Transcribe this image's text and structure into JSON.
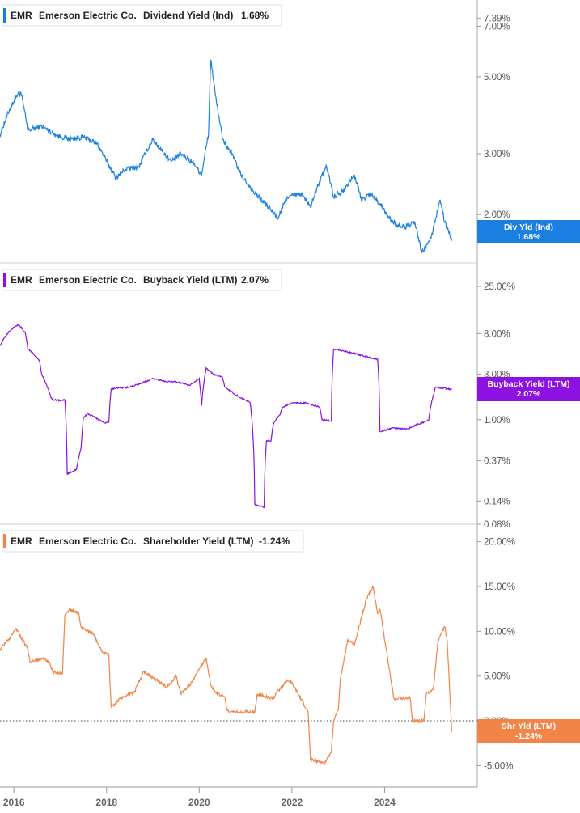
{
  "chart_data": [
    {
      "type": "line",
      "ticker": "EMR",
      "company": "Emerson Electric Co.",
      "metric": "Dividend Yield (Ind)",
      "current_label": "1.68%",
      "badge": {
        "line1": "Div Yld (Ind)",
        "line2": "1.68%"
      },
      "color": "#1a7fe0",
      "scale": "log",
      "ylim": [
        1.45,
        8.2
      ],
      "yticks": [
        {
          "label": "7.39%",
          "value": 7.39
        },
        {
          "label": "7.00%",
          "value": 7.0
        },
        {
          "label": "5.00%",
          "value": 5.0
        },
        {
          "label": "3.00%",
          "value": 3.0
        },
        {
          "label": "2.00%",
          "value": 2.0
        }
      ],
      "x": [
        2015.7,
        2015.9,
        2016.05,
        2016.15,
        2016.3,
        2016.6,
        2016.9,
        2017.2,
        2017.5,
        2017.8,
        2018.0,
        2018.2,
        2018.4,
        2018.7,
        2019.0,
        2019.2,
        2019.4,
        2019.6,
        2019.9,
        2020.05,
        2020.2,
        2020.25,
        2020.35,
        2020.5,
        2020.7,
        2020.9,
        2021.2,
        2021.5,
        2021.7,
        2021.9,
        2022.2,
        2022.4,
        2022.6,
        2022.75,
        2022.9,
        2023.1,
        2023.35,
        2023.5,
        2023.7,
        2023.9,
        2024.1,
        2024.3,
        2024.5,
        2024.65,
        2024.8,
        2025.0,
        2025.2,
        2025.3,
        2025.45
      ],
      "values": [
        3.4,
        4.0,
        4.4,
        4.5,
        3.5,
        3.6,
        3.4,
        3.3,
        3.35,
        3.2,
        2.85,
        2.55,
        2.7,
        2.75,
        3.3,
        3.05,
        2.85,
        3.0,
        2.8,
        2.6,
        3.4,
        5.6,
        4.4,
        3.3,
        3.0,
        2.6,
        2.3,
        2.1,
        1.95,
        2.25,
        2.3,
        2.1,
        2.5,
        2.75,
        2.25,
        2.35,
        2.6,
        2.2,
        2.3,
        2.15,
        1.95,
        1.85,
        1.85,
        1.9,
        1.55,
        1.7,
        2.2,
        1.9,
        1.68
      ]
    },
    {
      "type": "line",
      "ticker": "EMR",
      "company": "Emerson Electric Co.",
      "metric": "Buyback Yield (LTM)",
      "current_label": "2.07%",
      "badge": {
        "line1": "Buyback Yield (LTM)",
        "line2": "2.07%"
      },
      "color": "#8b12e0",
      "scale": "log",
      "ylim": [
        0.08,
        40
      ],
      "yticks": [
        {
          "label": "25.00%",
          "value": 25
        },
        {
          "label": "8.00%",
          "value": 8
        },
        {
          "label": "3.00%",
          "value": 3
        },
        {
          "label": "1.00%",
          "value": 1
        },
        {
          "label": "0.37%",
          "value": 0.37
        },
        {
          "label": "0.14%",
          "value": 0.14
        },
        {
          "label": "0.08%",
          "value": 0.08
        }
      ],
      "x": [
        2015.7,
        2015.9,
        2016.1,
        2016.25,
        2016.3,
        2016.55,
        2016.6,
        2016.8,
        2016.85,
        2017.1,
        2017.15,
        2017.35,
        2017.45,
        2017.5,
        2017.6,
        2017.95,
        2018.05,
        2018.1,
        2018.5,
        2018.75,
        2019.0,
        2019.3,
        2019.5,
        2019.8,
        2020.0,
        2020.05,
        2020.15,
        2020.3,
        2020.5,
        2020.55,
        2020.8,
        2021.0,
        2021.1,
        2021.2,
        2021.4,
        2021.45,
        2021.55,
        2021.6,
        2021.75,
        2021.8,
        2022.0,
        2022.3,
        2022.6,
        2022.65,
        2022.85,
        2022.9,
        2023.3,
        2023.6,
        2023.85,
        2023.9,
        2024.2,
        2024.5,
        2024.6,
        2024.95,
        2025.1,
        2025.45
      ],
      "values": [
        6.0,
        8.5,
        10.0,
        8.0,
        5.5,
        4.2,
        3.0,
        1.7,
        1.6,
        1.6,
        0.27,
        0.3,
        0.5,
        1.05,
        1.15,
        0.92,
        0.95,
        2.1,
        2.2,
        2.4,
        2.7,
        2.5,
        2.5,
        2.3,
        2.7,
        1.4,
        3.5,
        3.0,
        2.8,
        2.2,
        1.8,
        1.6,
        1.5,
        0.13,
        0.12,
        0.6,
        0.6,
        0.9,
        1.15,
        1.35,
        1.5,
        1.5,
        1.35,
        1.0,
        0.97,
        5.5,
        5.0,
        4.6,
        4.3,
        0.75,
        0.82,
        0.8,
        0.85,
        0.98,
        2.2,
        2.07
      ]
    },
    {
      "type": "line",
      "ticker": "EMR",
      "company": "Emerson Electric Co.",
      "metric": "Shareholder Yield (LTM)",
      "current_label": "-1.24%",
      "badge": {
        "line1": "Shr Yld (LTM)",
        "line2": "-1.24%"
      },
      "color": "#f28447",
      "scale": "linear",
      "ylim": [
        -7.4,
        21.5
      ],
      "yticks": [
        {
          "label": "20.00%",
          "value": 20
        },
        {
          "label": "15.00%",
          "value": 15
        },
        {
          "label": "10.00%",
          "value": 10
        },
        {
          "label": "5.00%",
          "value": 5
        },
        {
          "label": "0.00%",
          "value": 0
        },
        {
          "label": "-5.00%",
          "value": -5
        }
      ],
      "x": [
        2015.7,
        2015.9,
        2016.05,
        2016.3,
        2016.35,
        2016.6,
        2016.75,
        2016.85,
        2017.05,
        2017.1,
        2017.2,
        2017.4,
        2017.45,
        2017.7,
        2017.9,
        2018.05,
        2018.1,
        2018.3,
        2018.6,
        2018.8,
        2019.0,
        2019.3,
        2019.5,
        2019.6,
        2019.8,
        2020.0,
        2020.15,
        2020.25,
        2020.35,
        2020.55,
        2020.6,
        2020.8,
        2020.85,
        2021.2,
        2021.25,
        2021.6,
        2021.65,
        2021.9,
        2022.0,
        2022.35,
        2022.4,
        2022.7,
        2022.85,
        2022.9,
        2023.0,
        2023.05,
        2023.2,
        2023.35,
        2023.6,
        2023.75,
        2023.85,
        2023.9,
        2024.2,
        2024.55,
        2024.6,
        2024.85,
        2024.9,
        2025.05,
        2025.15,
        2025.2,
        2025.3,
        2025.35,
        2025.45
      ],
      "values": [
        8.0,
        9.2,
        10.3,
        8.0,
        6.5,
        7.0,
        6.6,
        5.5,
        5.3,
        11.8,
        12.5,
        12.0,
        10.5,
        9.8,
        7.8,
        7.3,
        1.5,
        2.5,
        3.2,
        5.5,
        4.8,
        3.8,
        5.0,
        3.0,
        4.0,
        5.8,
        7.0,
        4.0,
        3.2,
        2.7,
        1.2,
        1.0,
        1.0,
        1.0,
        3.0,
        2.5,
        3.0,
        4.5,
        4.3,
        1.0,
        -4.3,
        -4.8,
        -3.5,
        0.0,
        1.2,
        4.8,
        9.0,
        8.5,
        13.5,
        15.0,
        12.0,
        12.5,
        2.5,
        2.6,
        0.0,
        0.0,
        3.0,
        3.5,
        8.8,
        9.5,
        10.5,
        9.0,
        -1.24
      ]
    }
  ],
  "x_axis": {
    "xlim": [
      2015.7,
      2026.0
    ],
    "ticks": [
      {
        "label": "2016",
        "value": 2016
      },
      {
        "label": "2018",
        "value": 2018
      },
      {
        "label": "2020",
        "value": 2020
      },
      {
        "label": "2022",
        "value": 2022
      },
      {
        "label": "2024",
        "value": 2024
      }
    ]
  }
}
